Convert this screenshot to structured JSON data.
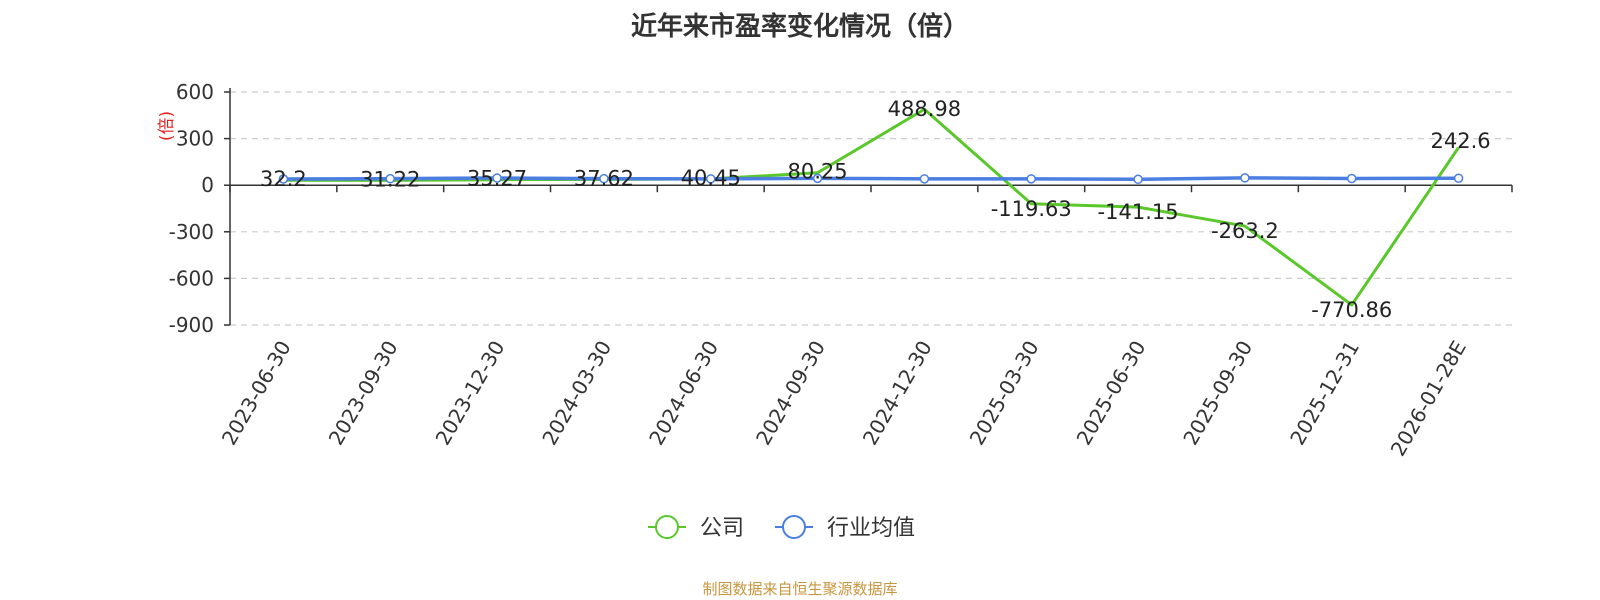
{
  "chart_data": {
    "type": "line",
    "title": "近年来市盈率变化情况（倍）",
    "ylabel": "(倍)",
    "xlabel": "",
    "ylim": [
      -900,
      600
    ],
    "yticks": [
      600,
      300,
      0,
      -300,
      -600,
      -900
    ],
    "grid": true,
    "legend_position": "bottom-center",
    "categories": [
      "2023-06-30",
      "2023-09-30",
      "2023-12-30",
      "2024-03-30",
      "2024-06-30",
      "2024-09-30",
      "2024-12-30",
      "2025-03-30",
      "2025-06-30",
      "2025-09-30",
      "2025-12-31",
      "2026-01-28E"
    ],
    "series": [
      {
        "name": "公司",
        "color": "#5ac72b",
        "values": [
          32.2,
          31.22,
          35.27,
          37.62,
          40.45,
          80.25,
          488.98,
          -119.63,
          -141.15,
          -263.2,
          -770.86,
          242.6
        ],
        "labels": [
          "32.2",
          "31.22",
          "35.27",
          "37.62",
          "40.45",
          "80.25",
          "488.98",
          "-119.63",
          "-141.15",
          "-263.2",
          "-770.86",
          "242.6"
        ]
      },
      {
        "name": "行业均值",
        "color": "#4a7ee0",
        "values": [
          40,
          42,
          46,
          42,
          41,
          44,
          41,
          41,
          38,
          47,
          43,
          45
        ]
      }
    ],
    "source": "制图数据来自恒生聚源数据库"
  }
}
